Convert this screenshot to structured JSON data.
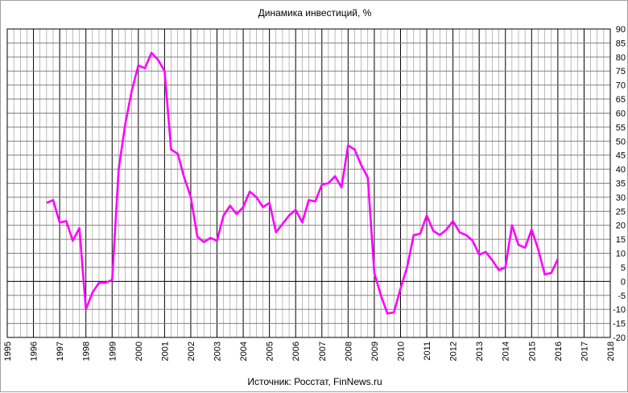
{
  "chart_data": {
    "type": "line",
    "title": "Динамика инвестиций, %",
    "source": "Источник: Росстат, FinNews.ru",
    "xlabel": "",
    "ylabel": "",
    "xlim": [
      1995,
      2018
    ],
    "ylim": [
      -20,
      90
    ],
    "y_ticks": [
      90,
      85,
      80,
      75,
      70,
      65,
      60,
      55,
      50,
      45,
      40,
      35,
      30,
      25,
      20,
      15,
      10,
      5,
      0,
      -5,
      -10,
      -15,
      -20
    ],
    "x_ticks": [
      "1995",
      "1996",
      "1997",
      "1998",
      "1999",
      "2000",
      "2001",
      "2002",
      "2003",
      "2004",
      "2005",
      "2006",
      "2007",
      "2008",
      "2009",
      "2010",
      "2011",
      "2012",
      "2013",
      "2014",
      "2015",
      "2016",
      "2017",
      "2018"
    ],
    "x_minor_step": 0.25,
    "grid": true,
    "line_color": "#ff00ff",
    "series": [
      {
        "x": [
          1996.5,
          1996.75,
          1997.0,
          1997.25,
          1997.5,
          1997.75,
          1998.0,
          1998.25,
          1998.5,
          1998.75,
          1999.0,
          1999.25,
          1999.5,
          1999.75,
          2000.0,
          2000.25,
          2000.5,
          2000.75,
          2001.0,
          2001.25,
          2001.5,
          2001.75,
          2002.0,
          2002.25,
          2002.5,
          2002.75,
          2003.0,
          2003.25,
          2003.5,
          2003.75,
          2004.0,
          2004.25,
          2004.5,
          2004.75,
          2005.0,
          2005.25,
          2005.5,
          2005.75,
          2006.0,
          2006.25,
          2006.5,
          2006.75,
          2007.0,
          2007.25,
          2007.5,
          2007.75,
          2008.0,
          2008.25,
          2008.5,
          2008.75,
          2009.0,
          2009.25,
          2009.5,
          2009.75,
          2010.0,
          2010.25,
          2010.5,
          2010.75,
          2011.0,
          2011.25,
          2011.5,
          2011.75,
          2012.0,
          2012.25,
          2012.5,
          2012.75,
          2013.0,
          2013.25,
          2013.5,
          2013.75,
          2014.0,
          2014.25,
          2014.5,
          2014.75,
          2015.0,
          2015.25,
          2015.5,
          2015.75,
          2016.0
        ],
        "values": [
          28,
          29,
          21,
          21.5,
          14.5,
          19,
          -10,
          -4,
          -0.5,
          -0.5,
          0.5,
          40,
          56,
          68,
          77,
          76,
          81.5,
          79,
          75,
          47,
          45.5,
          37,
          30,
          16,
          14,
          15.5,
          14.5,
          23.5,
          27,
          24,
          26.5,
          32,
          30,
          26.5,
          28,
          17.5,
          20.5,
          23.5,
          25.5,
          21,
          29,
          28.5,
          34.5,
          35,
          37.5,
          33.5,
          48.5,
          47,
          41.5,
          37,
          3,
          -5,
          -11.5,
          -11,
          -2.5,
          5,
          16.5,
          17,
          23.5,
          18,
          16.5,
          18.5,
          21.5,
          17.5,
          16.5,
          14.5,
          9.5,
          10.5,
          7.5,
          4,
          5,
          20,
          13,
          12,
          18.5,
          11.5,
          2.5,
          3,
          8
        ]
      }
    ]
  }
}
